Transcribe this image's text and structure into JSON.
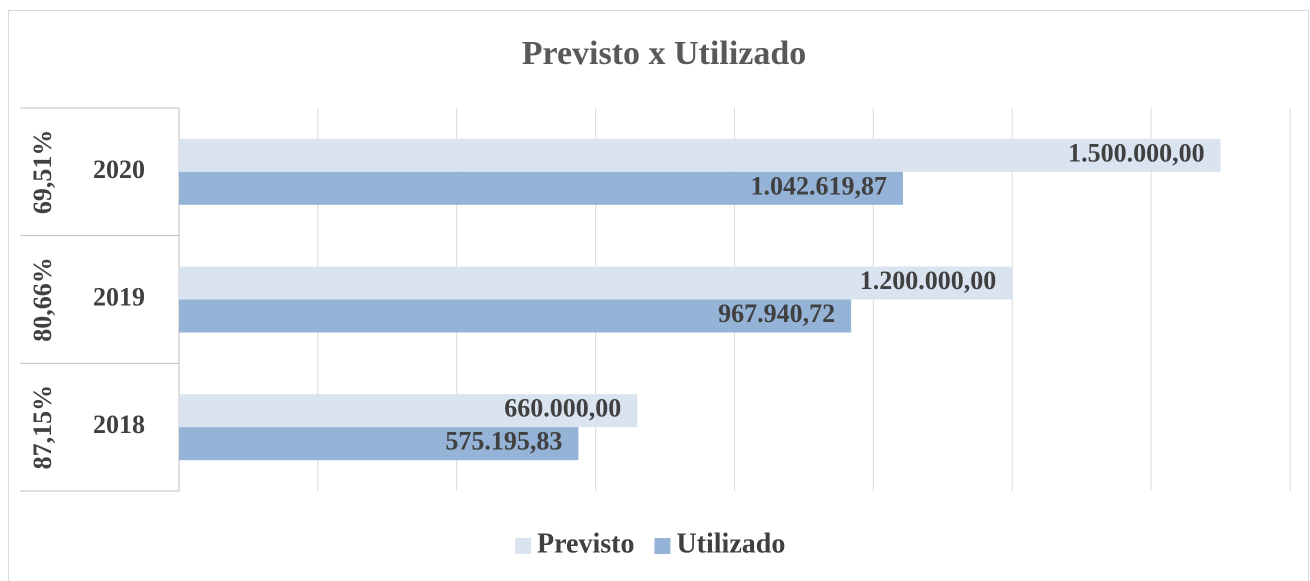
{
  "chart_data": {
    "type": "hbar",
    "title": "Previsto x Utilizado",
    "categories": [
      "2020",
      "2019",
      "2018"
    ],
    "group_labels": [
      "69,51%",
      "80,66%",
      "87,15%"
    ],
    "series": [
      {
        "name": "Previsto",
        "color": "#dae3f0",
        "values": [
          1500000,
          1200000,
          660000
        ],
        "value_labels": [
          "1.500.000,00",
          "1.200.000,00",
          "660.000,00"
        ]
      },
      {
        "name": "Utilizado",
        "color": "#95b3d7",
        "values": [
          1042619.87,
          967940.72,
          575195.83
        ],
        "value_labels": [
          "1.042.619,87",
          "967.940,72",
          "575.195,83"
        ]
      }
    ],
    "xlim": [
      0,
      1600000
    ],
    "xticks": [
      0,
      200000,
      400000,
      600000,
      800000,
      1000000,
      1200000,
      1400000,
      1600000
    ],
    "grid": true,
    "legend": "bottom"
  }
}
